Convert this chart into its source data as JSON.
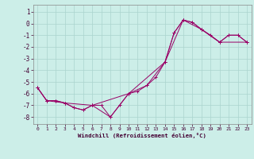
{
  "xlabel": "Windchill (Refroidissement éolien,°C)",
  "bg_color": "#cceee8",
  "grid_color": "#aad4ce",
  "line_color": "#990066",
  "xlim": [
    -0.5,
    23.5
  ],
  "ylim": [
    -8.6,
    1.6
  ],
  "xticks": [
    0,
    1,
    2,
    3,
    4,
    5,
    6,
    7,
    8,
    9,
    10,
    11,
    12,
    13,
    14,
    15,
    16,
    17,
    18,
    19,
    20,
    21,
    22,
    23
  ],
  "yticks": [
    1,
    0,
    -1,
    -2,
    -3,
    -4,
    -5,
    -6,
    -7,
    -8
  ],
  "series1_x": [
    0,
    1,
    2,
    3,
    4,
    5,
    6,
    7,
    8,
    9,
    10,
    11,
    12,
    13,
    14,
    15,
    16,
    17,
    18,
    19,
    20,
    21,
    22,
    23
  ],
  "series1_y": [
    -5.5,
    -6.6,
    -6.6,
    -6.8,
    -7.2,
    -7.4,
    -7.0,
    -7.0,
    -8.0,
    -7.0,
    -6.0,
    -5.8,
    -5.3,
    -4.6,
    -3.3,
    -0.8,
    0.3,
    0.1,
    -0.5,
    -1.0,
    -1.6,
    -1.0,
    -1.0,
    -1.6
  ],
  "series2_x": [
    0,
    1,
    2,
    3,
    4,
    5,
    6,
    8,
    10,
    12,
    14,
    15,
    16,
    17,
    18,
    20,
    21,
    22,
    23
  ],
  "series2_y": [
    -5.5,
    -6.6,
    -6.6,
    -6.8,
    -7.2,
    -7.4,
    -7.0,
    -8.0,
    -6.0,
    -5.3,
    -3.3,
    -0.8,
    0.3,
    0.1,
    -0.5,
    -1.6,
    -1.0,
    -1.0,
    -1.6
  ],
  "series3_x": [
    0,
    1,
    3,
    6,
    10,
    14,
    16,
    18,
    20,
    23
  ],
  "series3_y": [
    -5.5,
    -6.6,
    -6.8,
    -7.0,
    -6.0,
    -3.3,
    0.3,
    -0.5,
    -1.6,
    -1.6
  ],
  "figwidth": 3.2,
  "figheight": 2.0,
  "dpi": 100
}
